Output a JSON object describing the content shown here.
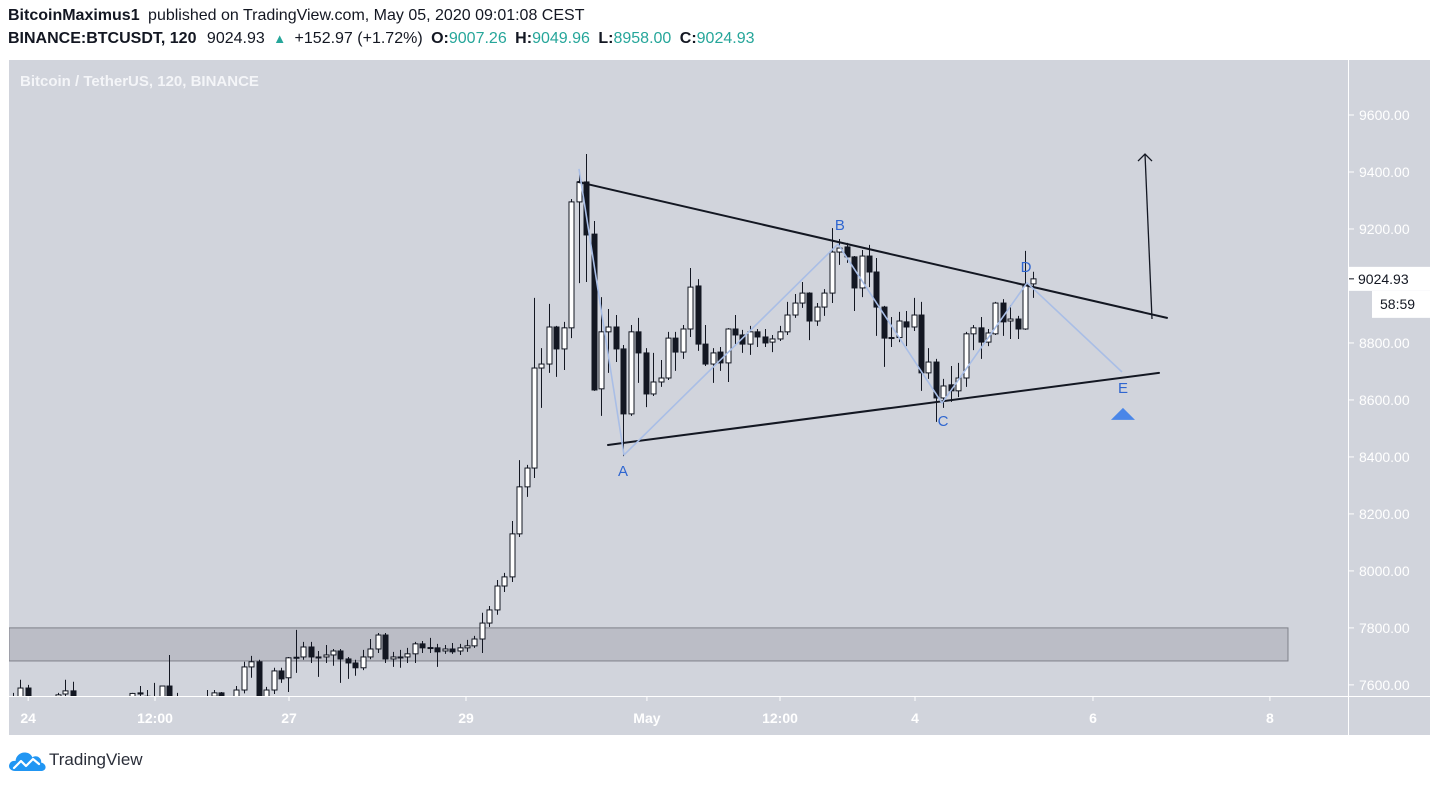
{
  "header": {
    "author": "BitcoinMaximus1",
    "published_text": "published on TradingView.com, May 05, 2020 09:01:08 CEST",
    "symbol_interval": "BINANCE:BTCUSDT, 120",
    "last_price": "9024.93",
    "change_icon": "▲",
    "change": "+152.97 (+1.72%)",
    "ohlc": [
      {
        "label": "O:",
        "value": "9007.26"
      },
      {
        "label": "H:",
        "value": "9049.96"
      },
      {
        "label": "L:",
        "value": "8958.00"
      },
      {
        "label": "C:",
        "value": "9024.93"
      }
    ]
  },
  "chart": {
    "legend_title": "Bitcoin / TetherUS, 120, BINANCE",
    "price_label": "9024.93",
    "countdown": "58:59"
  },
  "footer": {
    "brand": "TradingView",
    "logo_icon": "tradingview-cloud-icon"
  },
  "colors": {
    "up": "#26a69a",
    "chart_bg": "#d1d4dc",
    "axis_text": "#ffffff",
    "candle_dark": "#131722",
    "candle_light": "#ffffff",
    "drawing": "#131722",
    "zone_fill": "#bbbdc6",
    "zone_border": "#7f818a",
    "wave_line": "#a9bee6",
    "wave_label": "#2f66d0",
    "target_marker": "#4a86e8",
    "logo_blue": "#2196f3"
  },
  "chart_data": {
    "type": "candlestick",
    "title": "Bitcoin / TetherUS, 120, BINANCE",
    "symbol": "BINANCE:BTCUSDT",
    "interval": "120",
    "xlabel": "",
    "ylabel": "",
    "ylim": [
      7561,
      9793
    ],
    "grid": false,
    "legend_position": "top-left",
    "y_ticks": [
      9600,
      9400,
      9200,
      8800,
      8600,
      8400,
      8200,
      8000,
      7800,
      7600
    ],
    "y_tick_labels": [
      "9600.00",
      "9400.00",
      "9200.00",
      "8800.00",
      "8600.00",
      "8400.00",
      "8200.00",
      "8000.00",
      "7800.00",
      "7600.00"
    ],
    "x_ticks": [
      {
        "label": "24",
        "at_index": 2.04
      },
      {
        "label": "12:00",
        "at_index": 19.08
      },
      {
        "label": "27",
        "at_index": 37.08
      },
      {
        "label": "29",
        "at_index": 60.86
      },
      {
        "label": "May",
        "at_index": 85.17
      },
      {
        "label": "12:00",
        "at_index": 103.05
      },
      {
        "label": "4",
        "at_index": 121.19
      },
      {
        "label": "6",
        "at_index": 145.1
      },
      {
        "label": "8",
        "at_index": 168.87
      }
    ],
    "last": {
      "open": 9007.26,
      "high": 9049.96,
      "low": 8958.0,
      "close": 9024.93,
      "change": 152.97,
      "change_pct": 1.72
    },
    "columns": [
      "open",
      "high",
      "low",
      "close"
    ],
    "candles": [
      [
        7530,
        7572,
        7505,
        7545
      ],
      [
        7540,
        7618,
        7520,
        7589
      ],
      [
        7589,
        7600,
        7510,
        7530
      ],
      [
        7530,
        7555,
        7490,
        7520
      ],
      [
        7520,
        7550,
        7480,
        7505
      ],
      [
        7505,
        7545,
        7470,
        7530
      ],
      [
        7530,
        7572,
        7510,
        7565
      ],
      [
        7568,
        7618,
        7540,
        7579
      ],
      [
        7579,
        7611,
        7520,
        7540
      ],
      [
        7540,
        7555,
        7500,
        7520
      ],
      [
        7520,
        7545,
        7490,
        7510
      ],
      [
        7510,
        7540,
        7470,
        7495
      ],
      [
        7495,
        7530,
        7460,
        7480
      ],
      [
        7480,
        7520,
        7450,
        7500
      ],
      [
        7500,
        7535,
        7470,
        7515
      ],
      [
        7515,
        7550,
        7490,
        7530
      ],
      [
        7530,
        7572,
        7520,
        7570
      ],
      [
        7572,
        7596,
        7540,
        7568
      ],
      [
        7560,
        7582,
        7520,
        7545
      ],
      [
        7545,
        7607,
        7530,
        7555
      ],
      [
        7555,
        7596,
        7540,
        7596
      ],
      [
        7596,
        7705,
        7540,
        7550
      ],
      [
        7550,
        7572,
        7520,
        7540
      ],
      [
        7540,
        7555,
        7500,
        7520
      ],
      [
        7520,
        7550,
        7490,
        7530
      ],
      [
        7530,
        7555,
        7495,
        7540
      ],
      [
        7540,
        7582,
        7510,
        7550
      ],
      [
        7560,
        7582,
        7530,
        7572
      ],
      [
        7572,
        7575,
        7530,
        7550
      ],
      [
        7550,
        7560,
        7510,
        7545
      ],
      [
        7545,
        7596,
        7530,
        7582
      ],
      [
        7582,
        7681,
        7570,
        7663
      ],
      [
        7663,
        7702,
        7625,
        7681
      ],
      [
        7681,
        7688,
        7530,
        7545
      ],
      [
        7550,
        7593,
        7535,
        7582
      ],
      [
        7582,
        7660,
        7568,
        7649
      ],
      [
        7649,
        7660,
        7607,
        7621
      ],
      [
        7625,
        7698,
        7575,
        7695
      ],
      [
        7695,
        7793,
        7642,
        7697
      ],
      [
        7698,
        7751,
        7688,
        7733
      ],
      [
        7733,
        7751,
        7677,
        7698
      ],
      [
        7698,
        7719,
        7628,
        7698
      ],
      [
        7698,
        7740,
        7677,
        7705
      ],
      [
        7705,
        7726,
        7667,
        7719
      ],
      [
        7719,
        7726,
        7607,
        7691
      ],
      [
        7691,
        7698,
        7621,
        7677
      ],
      [
        7677,
        7688,
        7632,
        7660
      ],
      [
        7660,
        7723,
        7652,
        7698
      ],
      [
        7698,
        7761,
        7690,
        7726
      ],
      [
        7726,
        7782,
        7712,
        7775
      ],
      [
        7775,
        7782,
        7677,
        7691
      ],
      [
        7691,
        7716,
        7663,
        7698
      ],
      [
        7698,
        7723,
        7660,
        7696
      ],
      [
        7698,
        7730,
        7677,
        7709
      ],
      [
        7709,
        7751,
        7677,
        7744
      ],
      [
        7744,
        7754,
        7712,
        7730
      ],
      [
        7730,
        7765,
        7712,
        7731
      ],
      [
        7730,
        7744,
        7663,
        7716
      ],
      [
        7719,
        7740,
        7709,
        7726
      ],
      [
        7726,
        7747,
        7709,
        7716
      ],
      [
        7719,
        7744,
        7705,
        7730
      ],
      [
        7730,
        7758,
        7716,
        7737
      ],
      [
        7737,
        7772,
        7730,
        7761
      ],
      [
        7761,
        7853,
        7712,
        7817
      ],
      [
        7817,
        7877,
        7803,
        7863
      ],
      [
        7863,
        7968,
        7846,
        7947
      ],
      [
        7947,
        7993,
        7926,
        7979
      ],
      [
        7979,
        8175,
        7961,
        8130
      ],
      [
        8130,
        8389,
        8119,
        8295
      ],
      [
        8295,
        8372,
        8260,
        8361
      ],
      [
        8361,
        8958,
        8326,
        8712
      ],
      [
        8712,
        8782,
        8572,
        8726
      ],
      [
        8726,
        8937,
        8695,
        8856
      ],
      [
        8856,
        8860,
        8681,
        8779
      ],
      [
        8779,
        8874,
        8705,
        8853
      ],
      [
        8853,
        9305,
        8817,
        9295
      ],
      [
        9295,
        9407,
        9010,
        9365
      ],
      [
        9365,
        9463,
        9014,
        9179
      ],
      [
        9182,
        9228,
        8632,
        8635
      ],
      [
        8639,
        8961,
        8544,
        8839
      ],
      [
        8839,
        8919,
        8695,
        8856
      ],
      [
        8856,
        8898,
        8733,
        8779
      ],
      [
        8779,
        8793,
        8403,
        8551
      ],
      [
        8551,
        8863,
        8544,
        8839
      ],
      [
        8839,
        8888,
        8660,
        8765
      ],
      [
        8765,
        8782,
        8575,
        8621
      ],
      [
        8621,
        8765,
        8614,
        8663
      ],
      [
        8663,
        8740,
        8646,
        8677
      ],
      [
        8677,
        8839,
        8670,
        8817
      ],
      [
        8817,
        8839,
        8702,
        8768
      ],
      [
        8768,
        8863,
        8744,
        8849
      ],
      [
        8849,
        9063,
        8821,
        8996
      ],
      [
        9000,
        9024,
        8772,
        8796
      ],
      [
        8796,
        8863,
        8719,
        8726
      ],
      [
        8726,
        8782,
        8660,
        8765
      ],
      [
        8768,
        8786,
        8702,
        8730
      ],
      [
        8730,
        8852,
        8663,
        8849
      ],
      [
        8849,
        8898,
        8796,
        8828
      ],
      [
        8828,
        8846,
        8765,
        8796
      ],
      [
        8796,
        8860,
        8758,
        8839
      ],
      [
        8839,
        8849,
        8786,
        8821
      ],
      [
        8821,
        8849,
        8786,
        8800
      ],
      [
        8803,
        8828,
        8768,
        8814
      ],
      [
        8814,
        8860,
        8807,
        8839
      ],
      [
        8839,
        8944,
        8828,
        8898
      ],
      [
        8898,
        8972,
        8888,
        8940
      ],
      [
        8940,
        9014,
        8923,
        8975
      ],
      [
        8975,
        8978,
        8810,
        8877
      ],
      [
        8877,
        8940,
        8860,
        8926
      ],
      [
        8926,
        8989,
        8895,
        8975
      ],
      [
        8975,
        9203,
        8940,
        9119
      ],
      [
        9119,
        9165,
        9074,
        9133
      ],
      [
        9137,
        9151,
        9081,
        9102
      ],
      [
        9102,
        9105,
        8912,
        8993
      ],
      [
        8993,
        9126,
        8961,
        9105
      ],
      [
        9105,
        9144,
        8996,
        9049
      ],
      [
        9049,
        9098,
        8825,
        8926
      ],
      [
        8926,
        8930,
        8716,
        8817
      ],
      [
        8817,
        8891,
        8786,
        8819
      ],
      [
        8819,
        8909,
        8803,
        8877
      ],
      [
        8874,
        8912,
        8789,
        8856
      ],
      [
        8856,
        8958,
        8842,
        8898
      ],
      [
        8898,
        8944,
        8632,
        8695
      ],
      [
        8695,
        8782,
        8674,
        8733
      ],
      [
        8733,
        8744,
        8523,
        8607
      ],
      [
        8607,
        8674,
        8572,
        8649
      ],
      [
        8653,
        8719,
        8593,
        8632
      ],
      [
        8632,
        8730,
        8610,
        8677
      ],
      [
        8677,
        8839,
        8646,
        8832
      ],
      [
        8832,
        8863,
        8775,
        8853
      ],
      [
        8853,
        8891,
        8744,
        8803
      ],
      [
        8803,
        8849,
        8789,
        8835
      ],
      [
        8832,
        8944,
        8828,
        8940
      ],
      [
        8940,
        8954,
        8825,
        8874
      ],
      [
        8877,
        8933,
        8814,
        8884
      ],
      [
        8884,
        8895,
        8814,
        8849
      ],
      [
        8849,
        9123,
        8846,
        9007
      ],
      [
        9007.26,
        9049.96,
        8958.0,
        9024.93
      ]
    ],
    "annotations": {
      "support_zone": {
        "from_index": -0.54,
        "to_index": 171.3,
        "top": 7800,
        "bottom": 7684
      },
      "triangle_upper": [
        [
          75.91,
          9365
        ],
        [
          155.04,
          8888
        ]
      ],
      "triangle_lower": [
        [
          79.94,
          8442
        ],
        [
          153.97,
          8695
        ]
      ],
      "wave_path": [
        [
          76.04,
          9411
        ],
        [
          82.09,
          8407
        ],
        [
          110.84,
          9147
        ],
        [
          124.82,
          8589
        ],
        [
          136.24,
          9011
        ],
        [
          149.0,
          8698
        ]
      ],
      "wave_labels": [
        {
          "text": "A",
          "index": 81.96,
          "price": 8347
        },
        {
          "text": "B",
          "index": 111.1,
          "price": 9211
        },
        {
          "text": "C",
          "index": 124.95,
          "price": 8523
        },
        {
          "text": "D",
          "index": 136.1,
          "price": 9063
        },
        {
          "text": "E",
          "index": 149.13,
          "price": 8639
        }
      ],
      "target_marker": {
        "shape": "up-triangle",
        "index": 149.13,
        "price": 8551
      },
      "breakout_arrow": [
        [
          153.03,
          8884
        ],
        [
          152.09,
          9463
        ]
      ]
    }
  }
}
